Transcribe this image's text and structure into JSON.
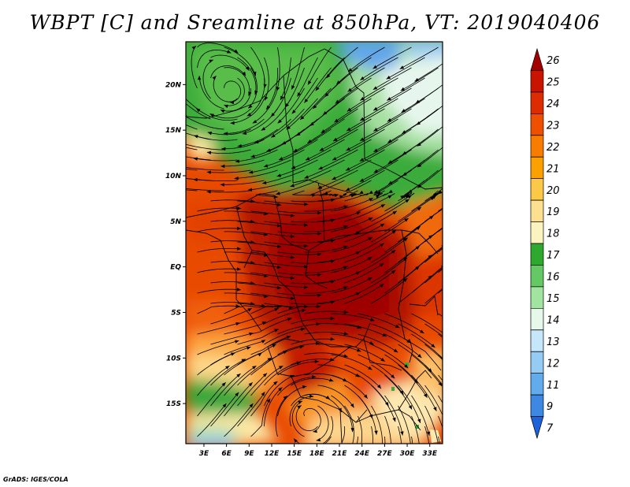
{
  "title": "WBPT [C] and Sreamline at 850hPa, VT: 2019040406",
  "credit": "GrADS: IGES/COLA",
  "map": {
    "variable": "WBPT",
    "units": "C",
    "level_hpa": 850,
    "valid_time": "2019040406",
    "overlay": "streamlines",
    "lat_labels": [
      "20N",
      "15N",
      "10N",
      "5N",
      "EQ",
      "5S",
      "10S",
      "15S"
    ],
    "lat_values": [
      20,
      15,
      10,
      5,
      0,
      -5,
      -10,
      -15
    ],
    "lon_labels": [
      "3E",
      "6E",
      "9E",
      "12E",
      "15E",
      "18E",
      "21E",
      "24E",
      "27E",
      "30E",
      "33E"
    ],
    "lon_values": [
      3,
      6,
      9,
      12,
      15,
      18,
      21,
      24,
      27,
      30,
      33
    ],
    "lat_range": [
      -19.4,
      24.7
    ],
    "lon_range": [
      0.6,
      34.7
    ]
  },
  "colorbar": {
    "labels": [
      "26",
      "25",
      "24",
      "23",
      "22",
      "21",
      "20",
      "19",
      "18",
      "17",
      "16",
      "15",
      "14",
      "13",
      "12",
      "11",
      "9",
      "7"
    ],
    "colors": [
      "#a50000",
      "#c81400",
      "#dc2c00",
      "#ee5000",
      "#f87c00",
      "#fca000",
      "#fcc848",
      "#fce090",
      "#fcf4c0",
      "#2ea82e",
      "#64c864",
      "#a0e4a0",
      "#e6f8ea",
      "#c6e6fa",
      "#96ccf4",
      "#62acee",
      "#3c88e2",
      "#1c62d8"
    ]
  }
}
